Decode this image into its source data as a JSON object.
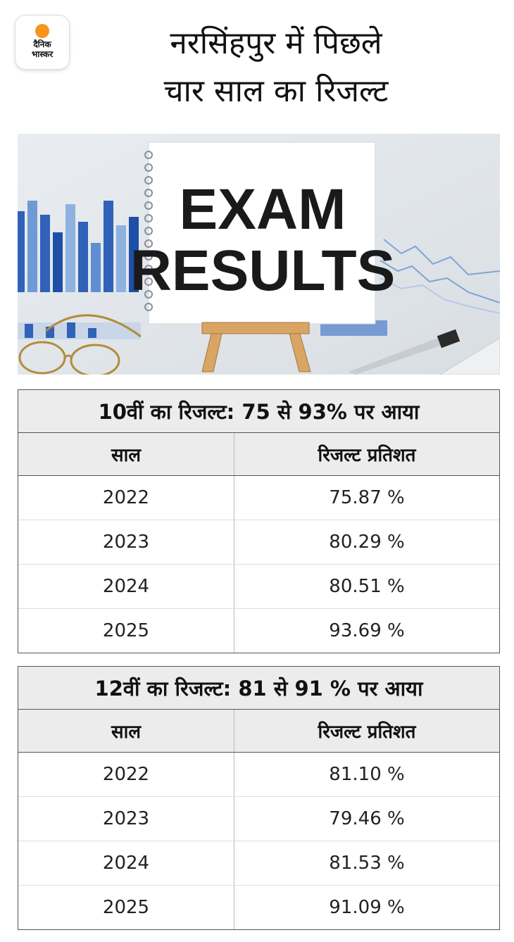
{
  "logo": {
    "line1": "दैनिक",
    "line2": "भास्कर",
    "sun_color": "#f7941d"
  },
  "title": {
    "line1": "नरसिंहपुर में पिछले",
    "line2": "चार साल का रिजल्ट"
  },
  "photo": {
    "line1": "EXAM",
    "line2": "RESULTS",
    "accent": "#2f62b8"
  },
  "table10": {
    "caption": "10वीं का रिजल्ट: 75 से 93% पर आया",
    "col_year": "साल",
    "col_result": "रिजल्ट प्रतिशत",
    "rows": [
      {
        "year": "2022",
        "result": "75.87 %"
      },
      {
        "year": "2023",
        "result": "80.29 %"
      },
      {
        "year": "2024",
        "result": "80.51 %"
      },
      {
        "year": "2025",
        "result": "93.69 %"
      }
    ]
  },
  "table12": {
    "caption": "12वीं का रिजल्ट: 81 से 91 % पर आया",
    "col_year": "साल",
    "col_result": "रिजल्ट प्रतिशत",
    "rows": [
      {
        "year": "2022",
        "result": "81.10 %"
      },
      {
        "year": "2023",
        "result": "79.46 %"
      },
      {
        "year": "2024",
        "result": "81.53 %"
      },
      {
        "year": "2025",
        "result": "91.09 %"
      }
    ]
  }
}
